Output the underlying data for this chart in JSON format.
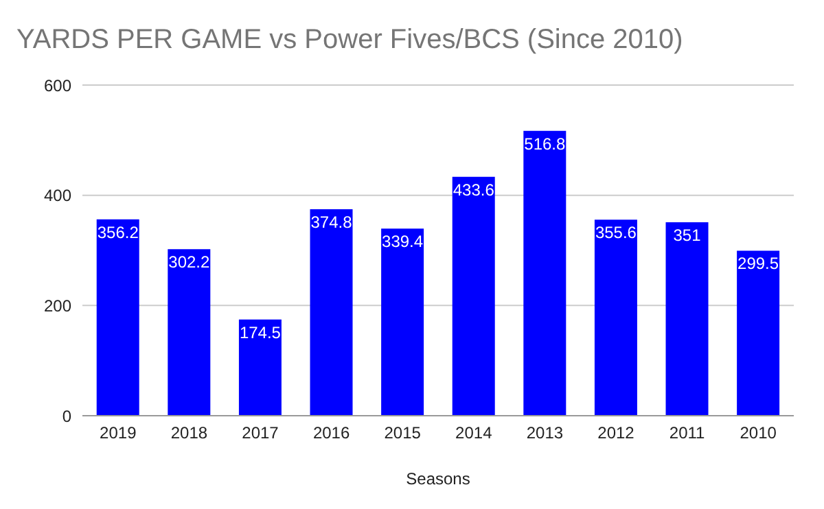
{
  "chart_data": {
    "type": "bar",
    "title": "YARDS PER GAME vs Power Fives/BCS (Since 2010)",
    "xlabel": "Seasons",
    "categories": [
      "2019",
      "2018",
      "2017",
      "2016",
      "2015",
      "2014",
      "2013",
      "2012",
      "2011",
      "2010"
    ],
    "values": [
      356.2,
      302.2,
      174.5,
      374.8,
      339.4,
      433.6,
      516.8,
      355.6,
      351,
      299.5
    ],
    "color": "#0000ff",
    "ylim": [
      0,
      600
    ],
    "yticks": [
      0,
      200,
      400,
      600
    ],
    "grid": "y",
    "data_labels": true
  }
}
